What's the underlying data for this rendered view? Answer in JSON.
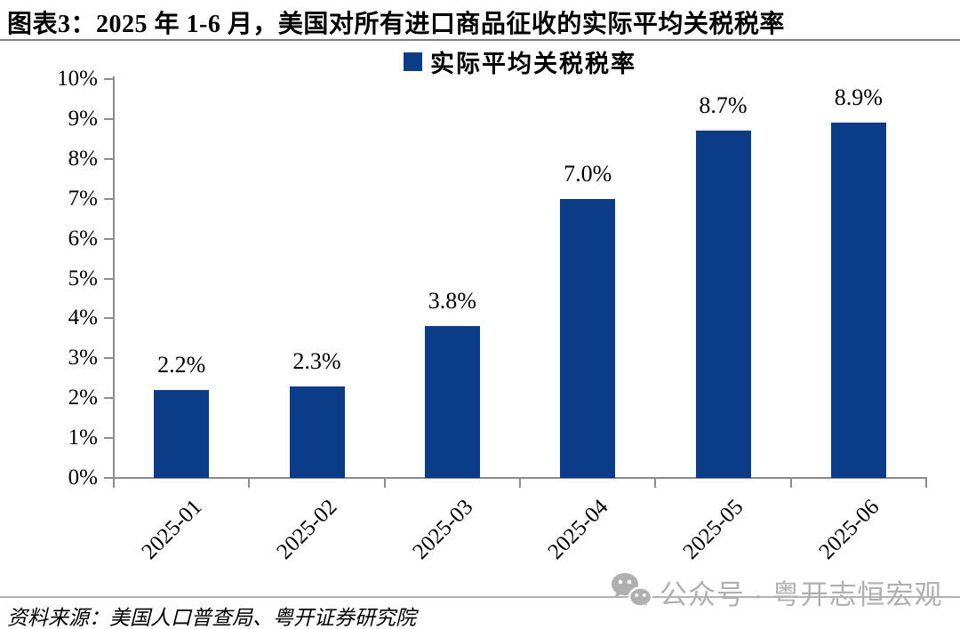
{
  "figure": {
    "title": "图表3：2025 年 1-6 月，美国对所有进口商品征收的实际平均关税税率"
  },
  "chart_data": {
    "type": "bar",
    "title": "2025 年 1-6 月，美国对所有进口商品征收的实际平均关税税率",
    "categories": [
      "2025-01",
      "2025-02",
      "2025-03",
      "2025-04",
      "2025-05",
      "2025-06"
    ],
    "values": [
      2.2,
      2.3,
      3.8,
      7.0,
      8.7,
      8.9
    ],
    "value_labels": [
      "2.2%",
      "2.3%",
      "3.8%",
      "7.0%",
      "8.7%",
      "8.9%"
    ],
    "series_name": "实际平均关税税率",
    "xlabel": "",
    "ylabel": "",
    "ylim": [
      0,
      10
    ],
    "ytick_labels": [
      "10%",
      "9%",
      "8%",
      "7%",
      "6%",
      "5%",
      "4%",
      "3%",
      "2%",
      "1%",
      "0%"
    ],
    "grid": false,
    "legend_position": "top-center",
    "bar_color": "#0b3c88",
    "axis_color": "#8c8c8c"
  },
  "legend": {
    "label": "实际平均关税税率",
    "marker_color": "#0b3c88"
  },
  "footer": {
    "source_note": "资料来源：美国人口普查局、粤开证券研究院"
  },
  "watermark": {
    "icon": "wechat-icon",
    "text": "公众号 · 粤开志恒宏观",
    "color": "#b0b0b0"
  }
}
